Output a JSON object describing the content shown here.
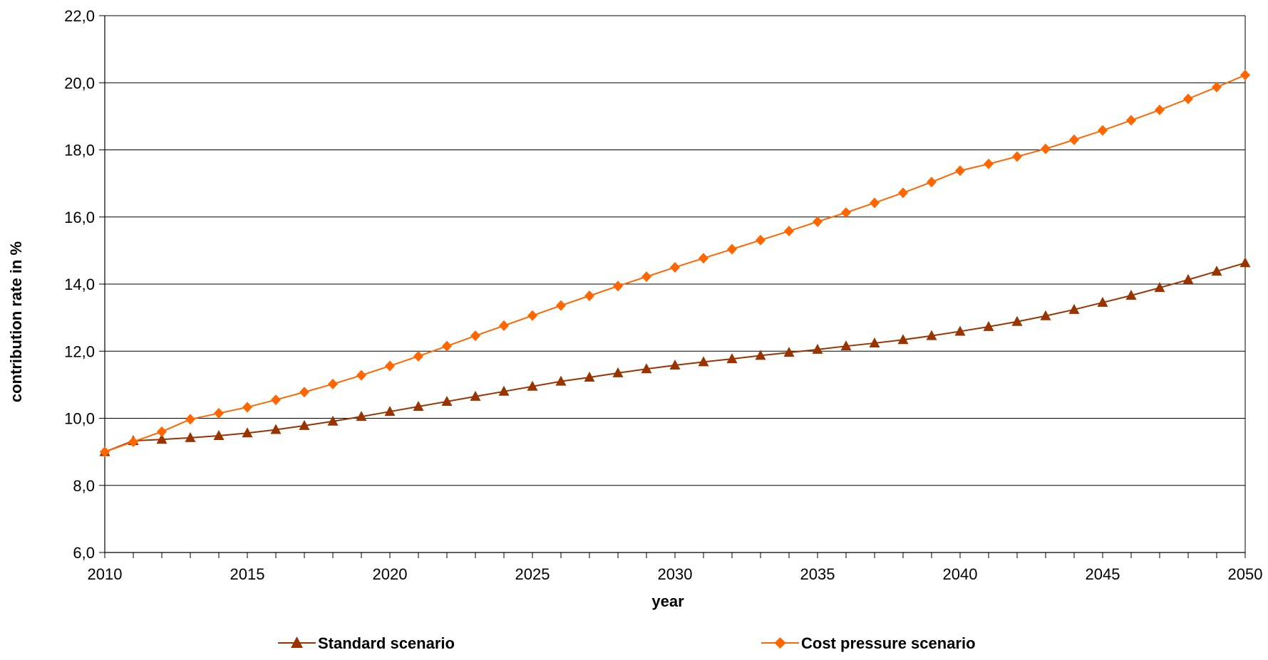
{
  "chart_data": {
    "type": "line",
    "title": "",
    "xlabel": "year",
    "ylabel": "contribution rate in %",
    "xlim": [
      2010,
      2050
    ],
    "ylim": [
      6.0,
      22.0
    ],
    "x_ticks": [
      "2010",
      "2015",
      "2020",
      "2025",
      "2030",
      "2035",
      "2040",
      "2045",
      "2050"
    ],
    "y_ticks": [
      "6,0",
      "8,0",
      "10,0",
      "12,0",
      "14,0",
      "16,0",
      "18,0",
      "20,0",
      "22,0"
    ],
    "grid": "horizontal",
    "legend": "bottom",
    "x": [
      2010,
      2011,
      2012,
      2013,
      2014,
      2015,
      2016,
      2017,
      2018,
      2019,
      2020,
      2021,
      2022,
      2023,
      2024,
      2025,
      2026,
      2027,
      2028,
      2029,
      2030,
      2031,
      2032,
      2033,
      2034,
      2035,
      2036,
      2037,
      2038,
      2039,
      2040,
      2041,
      2042,
      2043,
      2044,
      2045,
      2046,
      2047,
      2048,
      2049,
      2050
    ],
    "series": [
      {
        "name": "Standard scenario",
        "color": "#993300",
        "marker": "triangle",
        "values": [
          9.0,
          9.33,
          9.37,
          9.42,
          9.48,
          9.56,
          9.66,
          9.78,
          9.91,
          10.05,
          10.2,
          10.35,
          10.5,
          10.65,
          10.8,
          10.95,
          11.1,
          11.22,
          11.35,
          11.47,
          11.58,
          11.68,
          11.77,
          11.87,
          11.96,
          12.05,
          12.15,
          12.24,
          12.34,
          12.46,
          12.59,
          12.73,
          12.88,
          13.05,
          13.24,
          13.45,
          13.66,
          13.89,
          14.13,
          14.38,
          14.63
        ]
      },
      {
        "name": "Cost pressure scenario",
        "color": "#ff6600",
        "marker": "diamond",
        "values": [
          9.0,
          9.3,
          9.6,
          9.97,
          10.15,
          10.33,
          10.55,
          10.78,
          11.02,
          11.28,
          11.56,
          11.85,
          12.15,
          12.46,
          12.76,
          13.06,
          13.36,
          13.65,
          13.94,
          14.22,
          14.5,
          14.77,
          15.04,
          15.31,
          15.58,
          15.86,
          16.13,
          16.42,
          16.72,
          17.04,
          17.38,
          17.58,
          17.8,
          18.03,
          18.3,
          18.58,
          18.88,
          19.19,
          19.52,
          19.87,
          20.23
        ]
      }
    ]
  }
}
